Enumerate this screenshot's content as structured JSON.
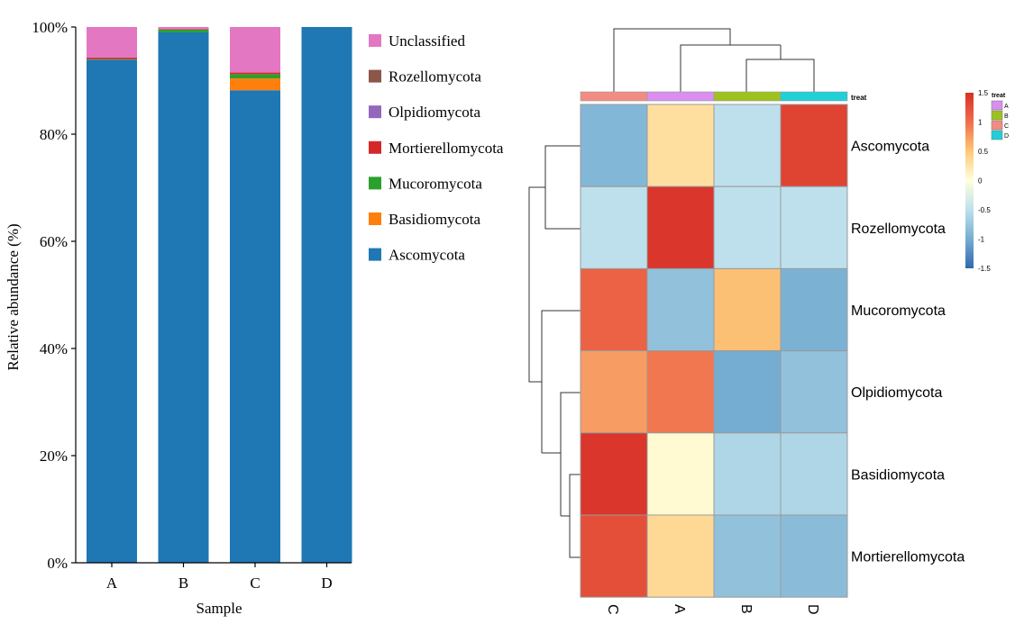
{
  "chart_data": [
    {
      "type": "bar",
      "stacked": true,
      "xlabel": "Sample",
      "ylabel": "Relative abundance (%)",
      "ylim": [
        0,
        100
      ],
      "yticks": [
        "0%",
        "20%",
        "40%",
        "60%",
        "80%",
        "100%"
      ],
      "yticks_values": [
        0,
        20,
        40,
        60,
        80,
        100
      ],
      "categories": [
        "A",
        "B",
        "C",
        "D"
      ],
      "legend_position": "right",
      "series": [
        {
          "name": "Ascomycota",
          "color": "#1f77b4",
          "values": [
            93.9,
            99.0,
            88.2,
            100.0
          ]
        },
        {
          "name": "Basidiomycota",
          "color": "#ff7f0e",
          "values": [
            0.0,
            0.0,
            2.2,
            0.0
          ]
        },
        {
          "name": "Mucoromycota",
          "color": "#2ca02c",
          "values": [
            0.1,
            0.5,
            0.8,
            0.0
          ]
        },
        {
          "name": "Mortierellomycota",
          "color": "#d62728",
          "values": [
            0.3,
            0.1,
            0.3,
            0.0
          ]
        },
        {
          "name": "Olpidiomycota",
          "color": "#9467bd",
          "values": [
            0.0,
            0.0,
            0.0,
            0.0
          ]
        },
        {
          "name": "Rozellomycota",
          "color": "#8c564b",
          "values": [
            0.0,
            0.0,
            0.0,
            0.0
          ]
        },
        {
          "name": "Unclassified",
          "color": "#e377c2",
          "values": [
            5.7,
            0.4,
            8.5,
            0.0
          ]
        }
      ],
      "legend_order": [
        "Unclassified",
        "Rozellomycota",
        "Olpidiomycota",
        "Mortierellomycota",
        "Mucoromycota",
        "Basidiomycota",
        "Ascomycota"
      ]
    },
    {
      "type": "heatmap",
      "columns": [
        "C",
        "A",
        "B",
        "D"
      ],
      "rows": [
        "Ascomycota",
        "Rozellomycota",
        "Mucoromycota",
        "Olpidiomycota",
        "Basidiomycota",
        "Mortierellomycota"
      ],
      "values": [
        [
          -0.9,
          0.3,
          -0.5,
          1.35
        ],
        [
          -0.5,
          1.45,
          -0.5,
          -0.5
        ],
        [
          1.1,
          -0.8,
          0.55,
          -0.95
        ],
        [
          0.75,
          0.95,
          -1.0,
          -0.8
        ],
        [
          1.45,
          0.05,
          -0.6,
          -0.6
        ],
        [
          1.25,
          0.35,
          -0.8,
          -0.85
        ]
      ],
      "color_scale": {
        "min": -1.5,
        "max": 1.5,
        "ticks": [
          "1.5",
          "1",
          "0.5",
          "0",
          "-0.5",
          "-1",
          "-1.5"
        ],
        "tick_values": [
          1.5,
          1,
          0.5,
          0,
          -0.5,
          -1,
          -1.5
        ]
      },
      "annotation": {
        "label": "treat",
        "legend": [
          {
            "name": "A",
            "color": "#d98fef"
          },
          {
            "name": "B",
            "color": "#9dc21e"
          },
          {
            "name": "C",
            "color": "#f28c82"
          },
          {
            "name": "D",
            "color": "#1fd0d8"
          }
        ]
      }
    }
  ]
}
